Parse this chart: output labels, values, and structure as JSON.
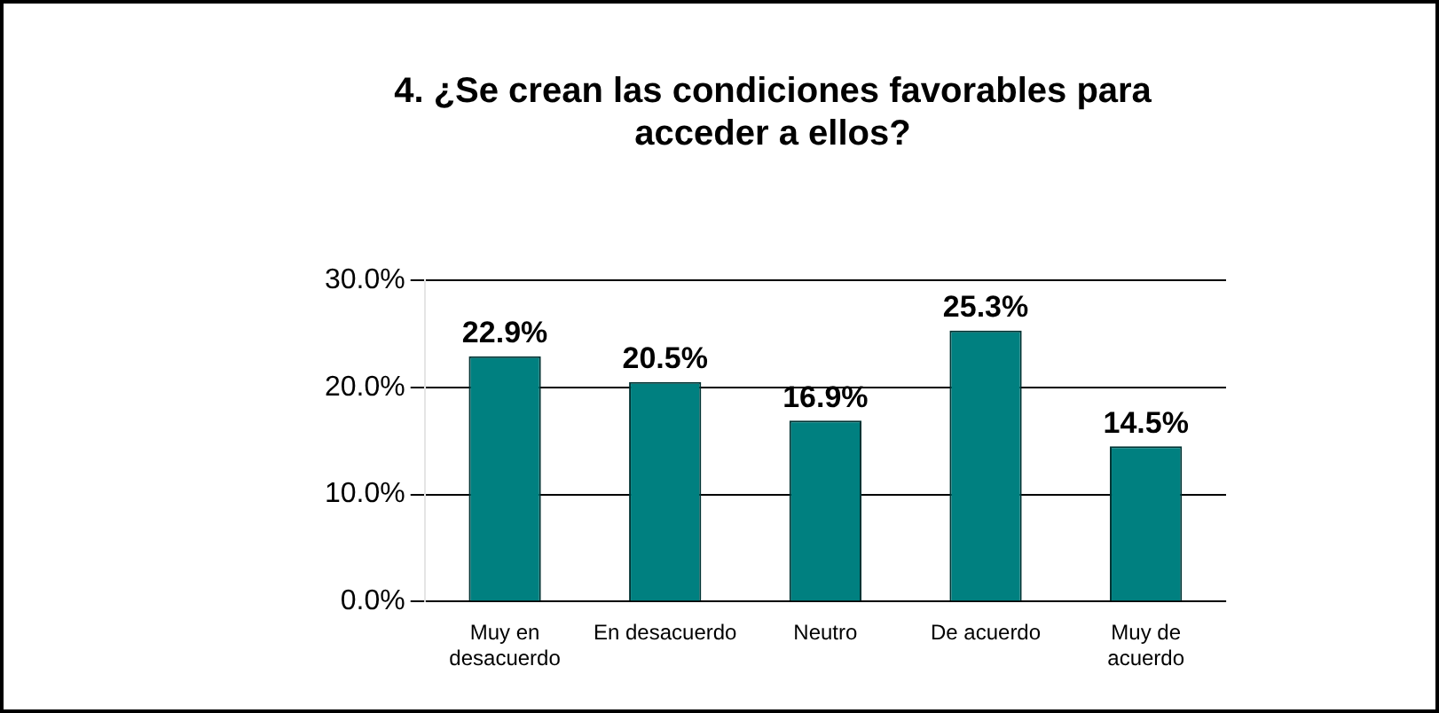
{
  "chart_data": {
    "type": "bar",
    "title": "4. ¿Se crean las condiciones favorables para acceder a ellos?",
    "categories": [
      "Muy en desacuerdo",
      "En desacuerdo",
      "Neutro",
      "De acuerdo",
      "Muy de acuerdo"
    ],
    "values": [
      22.9,
      20.5,
      16.9,
      25.3,
      14.5
    ],
    "value_labels": [
      "22.9%",
      "20.5%",
      "16.9%",
      "25.3%",
      "14.5%"
    ],
    "color": "#008080",
    "ylim": [
      0,
      30
    ],
    "yticks": [
      {
        "value": 0,
        "label": "0.0%"
      },
      {
        "value": 10,
        "label": "10.0%"
      },
      {
        "value": 20,
        "label": "20.0%"
      },
      {
        "value": 30,
        "label": "30.0%"
      }
    ],
    "grid": "y",
    "legend": false
  }
}
